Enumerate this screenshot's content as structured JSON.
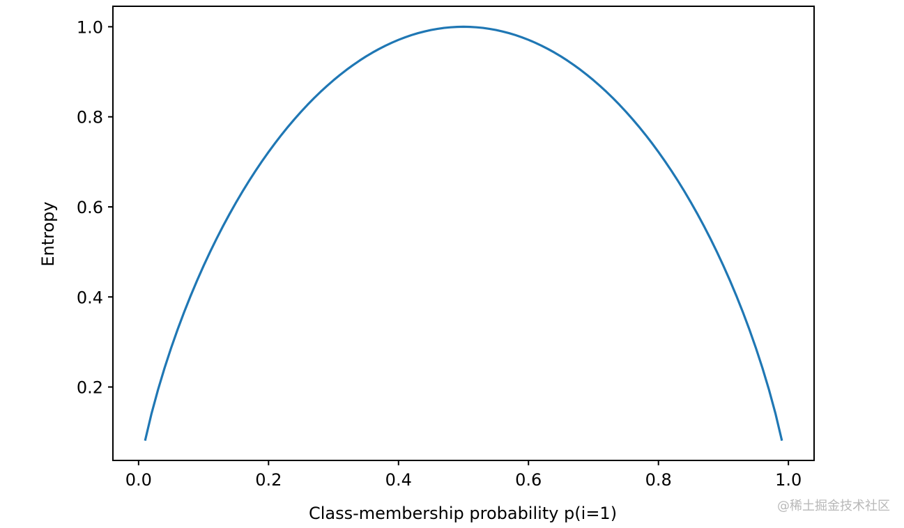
{
  "chart_data": {
    "type": "line",
    "title": "",
    "xlabel": "Class-membership probability p(i=1)",
    "ylabel": "Entropy",
    "xlim": [
      -0.0395,
      1.0395
    ],
    "ylim": [
      0.0369,
      1.0455
    ],
    "xticks": [
      0.0,
      0.2,
      0.4,
      0.6,
      0.8,
      1.0
    ],
    "xtick_labels": [
      "0.0",
      "0.2",
      "0.4",
      "0.6",
      "0.8",
      "1.0"
    ],
    "yticks": [
      0.2,
      0.4,
      0.6,
      0.8,
      1.0
    ],
    "ytick_labels": [
      "0.2",
      "0.4",
      "0.6",
      "0.8",
      "1.0"
    ],
    "grid": false,
    "series": [
      {
        "color": "#1f77b4",
        "x_range": [
          0.01,
          0.99
        ],
        "x_step": 0.01,
        "values_formula": "-p*log2(p) - (1-p)*log2(1-p)"
      }
    ]
  },
  "watermark": {
    "text": "@稀土掘金技术社区",
    "color": "#b8b8b8"
  }
}
